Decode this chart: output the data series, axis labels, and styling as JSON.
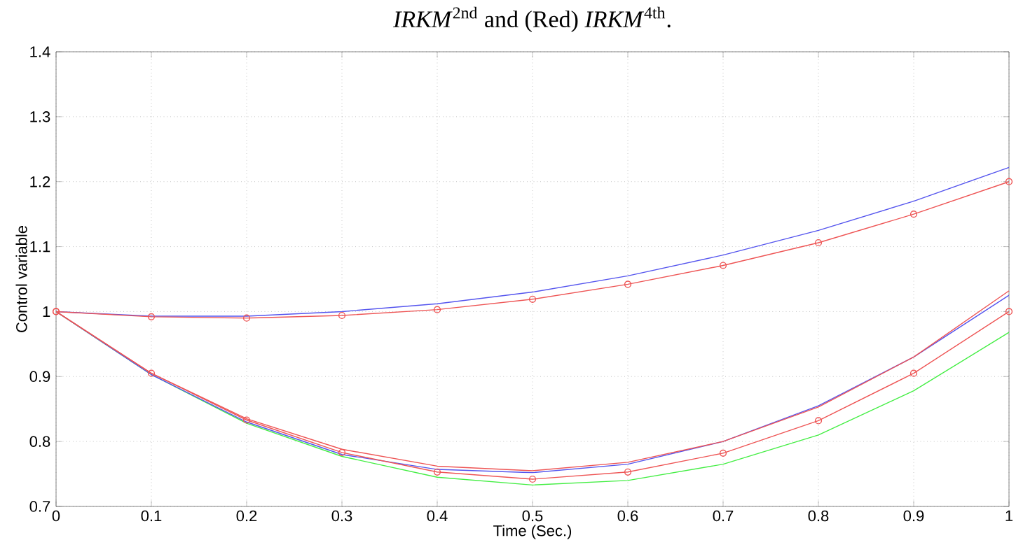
{
  "chart_data": {
    "type": "line",
    "annotations": [
      "*IRKM*$^{2nd}$ and (Red) *IRKM*$^{4th}$."
    ],
    "xlabel": "Time (Sec.)",
    "ylabel": "Control variable",
    "x": [
      0,
      0.1,
      0.2,
      0.3,
      0.4,
      0.5,
      0.6,
      0.7,
      0.8,
      0.9,
      1.0
    ],
    "series": [
      {
        "color": "#5555ee",
        "marker": "none",
        "values": [
          1.0,
          0.993,
          0.993,
          1.0,
          1.012,
          1.03,
          1.055,
          1.087,
          1.125,
          1.17,
          1.222
        ]
      },
      {
        "color": "#ee5555",
        "marker": "circle",
        "values": [
          1.0,
          0.992,
          0.99,
          0.994,
          1.003,
          1.019,
          1.042,
          1.071,
          1.106,
          1.15,
          1.2
        ]
      },
      {
        "color": "#44ee44",
        "marker": "none",
        "values": [
          1.0,
          0.903,
          0.828,
          0.777,
          0.745,
          0.733,
          0.74,
          0.765,
          0.81,
          0.878,
          0.968
        ]
      },
      {
        "color": "#5555ee",
        "marker": "none",
        "values": [
          1.0,
          0.903,
          0.83,
          0.78,
          0.757,
          0.752,
          0.765,
          0.8,
          0.855,
          0.93,
          1.025
        ]
      },
      {
        "color": "#ee5555",
        "marker": "none",
        "values": [
          1.0,
          0.905,
          0.835,
          0.788,
          0.762,
          0.755,
          0.768,
          0.8,
          0.853,
          0.93,
          1.032
        ]
      },
      {
        "color": "#ee5555",
        "marker": "circle",
        "values": [
          1.0,
          0.905,
          0.833,
          0.783,
          0.753,
          0.742,
          0.753,
          0.782,
          0.832,
          0.905,
          1.0
        ]
      }
    ],
    "xlim": [
      0,
      1
    ],
    "ylim": [
      0.7,
      1.4
    ],
    "xticks": [
      0,
      0.1,
      0.2,
      0.3,
      0.4,
      0.5,
      0.6,
      0.7,
      0.8,
      0.9,
      1
    ],
    "yticks": [
      0.7,
      0.8,
      0.9,
      1,
      1.1,
      1.2,
      1.3,
      1.4
    ],
    "grid": true,
    "line_style": "solid"
  }
}
